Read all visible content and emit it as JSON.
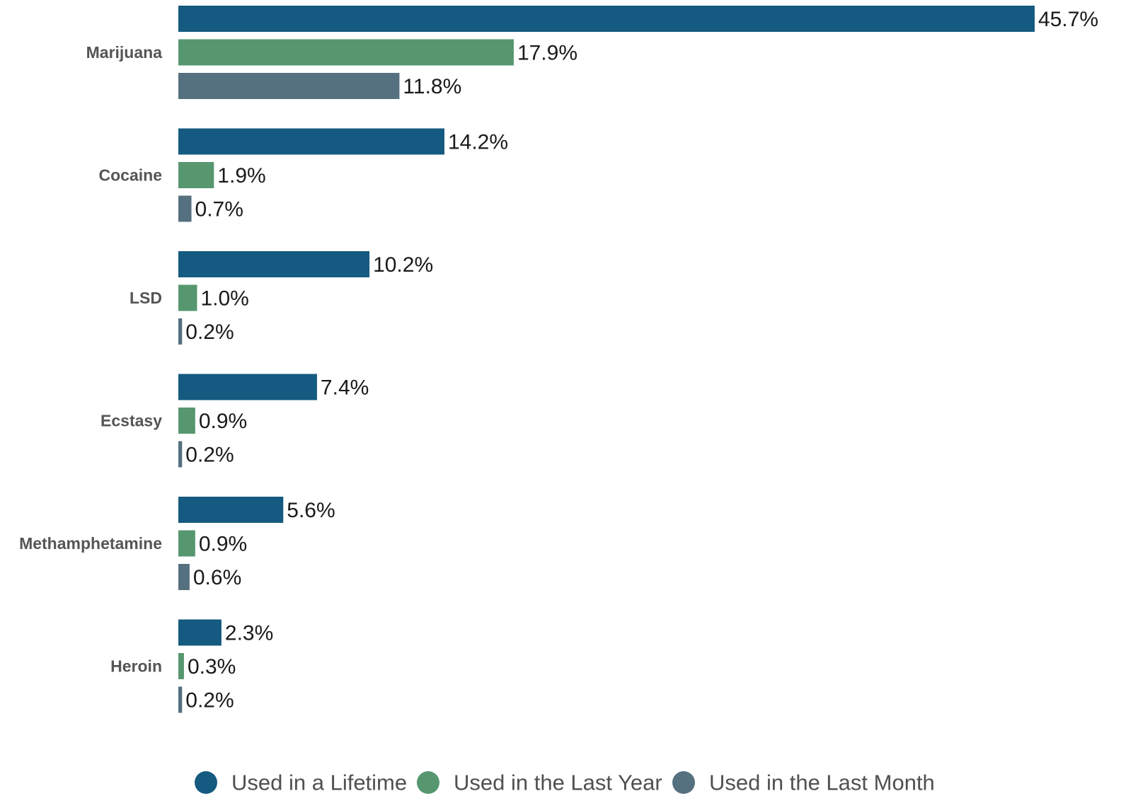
{
  "chart_data": {
    "type": "bar",
    "orientation": "horizontal",
    "categories": [
      "Marijuana",
      "Cocaine",
      "LSD",
      "Ecstasy",
      "Methamphetamine",
      "Heroin"
    ],
    "series": [
      {
        "name": "Used in a Lifetime",
        "color": "#155a80",
        "values": [
          45.7,
          14.2,
          10.2,
          7.4,
          5.6,
          2.3
        ],
        "labels": [
          "45.7%",
          "14.2%",
          "10.2%",
          "7.4%",
          "5.6%",
          "2.3%"
        ]
      },
      {
        "name": "Used in the Last Year",
        "color": "#56976f",
        "values": [
          17.9,
          1.9,
          1.0,
          0.9,
          0.9,
          0.3
        ],
        "labels": [
          "17.9%",
          "1.9%",
          "1.0%",
          "0.9%",
          "0.9%",
          "0.3%"
        ]
      },
      {
        "name": "Used in the Last Month",
        "color": "#55707f",
        "values": [
          11.8,
          0.7,
          0.2,
          0.2,
          0.6,
          0.2
        ],
        "labels": [
          "11.8%",
          "0.7%",
          "0.2%",
          "0.2%",
          "0.6%",
          "0.2%"
        ]
      }
    ],
    "value_unit": "%",
    "xlim": [
      0,
      45.7
    ],
    "grid": false,
    "legend_position": "bottom-center"
  }
}
